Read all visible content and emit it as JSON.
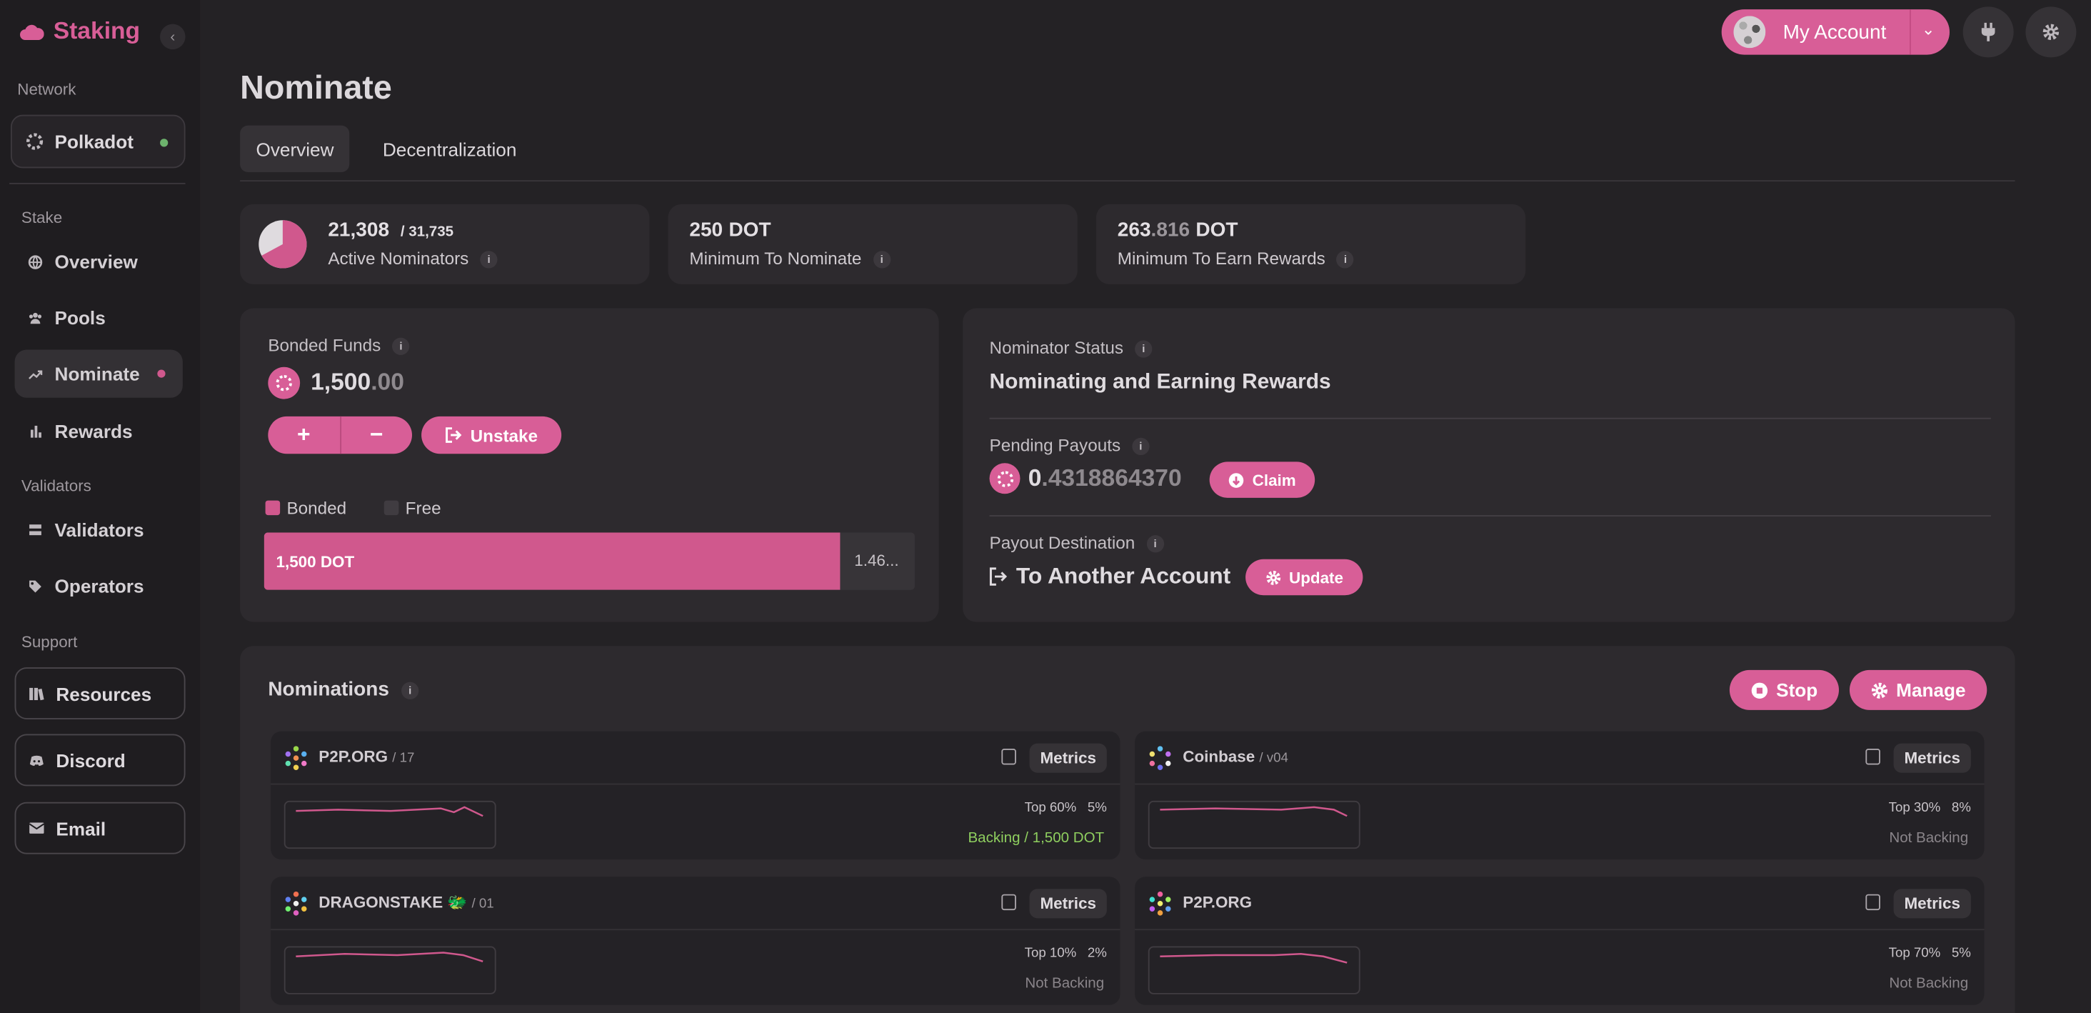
{
  "app": {
    "brand": "Staking"
  },
  "sidebar": {
    "network_heading": "Network",
    "network": {
      "name": "Polkadot",
      "status_color": "#6db36d"
    },
    "stake_heading": "Stake",
    "stake_items": [
      {
        "label": "Overview",
        "icon": "globe-icon"
      },
      {
        "label": "Pools",
        "icon": "users-icon"
      },
      {
        "label": "Nominate",
        "icon": "trend-icon",
        "active": true
      },
      {
        "label": "Rewards",
        "icon": "bar-chart-icon"
      }
    ],
    "validators_heading": "Validators",
    "validator_items": [
      {
        "label": "Validators",
        "icon": "server-icon"
      },
      {
        "label": "Operators",
        "icon": "tag-icon"
      }
    ],
    "support_heading": "Support",
    "support_items": [
      {
        "label": "Resources",
        "icon": "book-icon"
      },
      {
        "label": "Discord",
        "icon": "discord-icon"
      },
      {
        "label": "Email",
        "icon": "envelope-icon"
      }
    ]
  },
  "header": {
    "account_label": "My Account"
  },
  "page": {
    "title": "Nominate",
    "tabs": [
      "Overview",
      "Decentralization"
    ]
  },
  "stats": {
    "active_nominators": {
      "value": "21,308",
      "total": "/ 31,735",
      "label": "Active Nominators",
      "fraction": 0.6714
    },
    "min_nominate": {
      "value": "250",
      "unit": "DOT",
      "label": "Minimum To Nominate"
    },
    "min_rewards": {
      "value_int": "263",
      "value_dec": ".816",
      "unit": "DOT",
      "label": "Minimum To Earn Rewards"
    }
  },
  "bonded": {
    "label": "Bonded Funds",
    "amount_int": "1,500",
    "amount_dec": ".00",
    "plus": "+",
    "minus": "−",
    "unstake_label": "Unstake",
    "legend_bonded": "Bonded",
    "legend_free": "Free",
    "bar_bonded_text": "1,500 DOT",
    "bar_free_text": "1.46...",
    "bonded_fraction": 0.885,
    "bonded_color": "#d0588d"
  },
  "status": {
    "status_label": "Nominator Status",
    "status_value": "Nominating and Earning Rewards",
    "payouts_label": "Pending Payouts",
    "payouts_int": "0",
    "payouts_dec": ".4318864370",
    "claim_label": "Claim",
    "dest_label": "Payout Destination",
    "dest_value": "To Another Account",
    "update_label": "Update"
  },
  "nominations": {
    "title": "Nominations",
    "stop_label": "Stop",
    "manage_label": "Manage",
    "metrics_label": "Metrics",
    "items": [
      {
        "name": "P2P.ORG",
        "sub": "/ 17",
        "rank": "Top 60%",
        "commission": "5%",
        "backing": "Backing / 1,500 DOT",
        "backing_active": true
      },
      {
        "name": "Coinbase",
        "sub": "/ v04",
        "rank": "Top 30%",
        "commission": "8%",
        "backing": "Not Backing",
        "backing_active": false
      },
      {
        "name": "DRAGONSTAKE 🐲",
        "sub": "/ 01",
        "rank": "Top 10%",
        "commission": "2%",
        "backing": "Not Backing",
        "backing_active": false
      },
      {
        "name": "P2P.ORG",
        "sub": "",
        "rank": "Top 70%",
        "commission": "5%",
        "backing": "Not Backing",
        "backing_active": false
      }
    ]
  }
}
